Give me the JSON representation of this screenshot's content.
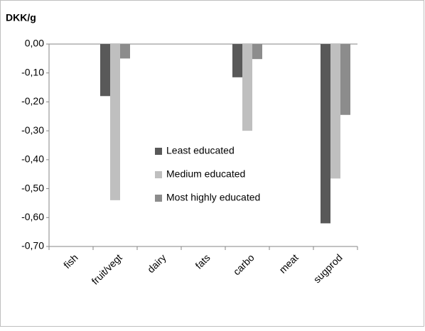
{
  "chart_data": {
    "type": "bar",
    "title": "DKK/g",
    "categories": [
      "fish",
      "fruit/vegt",
      "dairy",
      "fats",
      "carbo",
      "meat",
      "sugprod"
    ],
    "series": [
      {
        "name": "Least educated",
        "color": "#595959",
        "values": [
          0,
          -0.18,
          0,
          0,
          -0.115,
          0,
          -0.62
        ]
      },
      {
        "name": "Medium educated",
        "color": "#bfbfbf",
        "values": [
          0,
          -0.54,
          0,
          0,
          -0.3,
          0,
          -0.465
        ]
      },
      {
        "name": "Most highly educated",
        "color": "#8c8c8c",
        "values": [
          0,
          -0.05,
          0,
          0,
          -0.052,
          0,
          -0.245
        ]
      }
    ],
    "ylim": [
      -0.7,
      0
    ],
    "yticks": [
      {
        "value": 0,
        "label": "0,00"
      },
      {
        "value": -0.1,
        "label": "-0,10"
      },
      {
        "value": -0.2,
        "label": "-0,20"
      },
      {
        "value": -0.3,
        "label": "-0,30"
      },
      {
        "value": -0.4,
        "label": "-0,40"
      },
      {
        "value": -0.5,
        "label": "-0,50"
      },
      {
        "value": -0.6,
        "label": "-0,60"
      },
      {
        "value": -0.7,
        "label": "-0,70"
      }
    ],
    "grid": false
  }
}
